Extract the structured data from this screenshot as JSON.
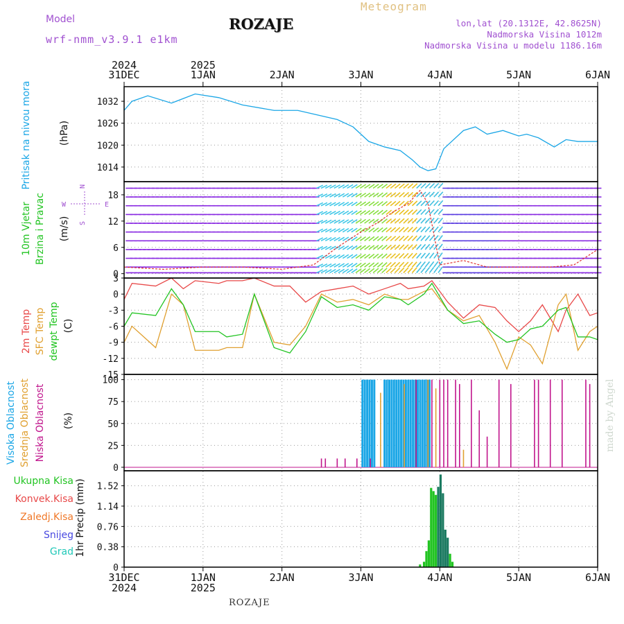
{
  "header": {
    "model_label": "Model",
    "model_name": "wrf-nmm_v3.9.1 e1km",
    "station_title": "ROZAJE",
    "meteogram_label": "Meteogram",
    "coords": "lon,lat (20.1312E, 42.8625N)",
    "elevation": "Nadmorska Visina 1012m",
    "elevation_model": "Nadmorska Visina u modelu 1186.16m"
  },
  "footer": {
    "station": "ROZAJE",
    "watermark": "made by Angel"
  },
  "colors": {
    "pressure": "#1aa6e6",
    "temp2m": "#e84848",
    "sfc_temp": "#e0a030",
    "dewpt": "#22c422",
    "cloud_high": "#1aa6e6",
    "cloud_mid": "#e0a030",
    "cloud_low": "#c0148c",
    "precip_total": "#22c422",
    "precip_conv": "#e84848",
    "precip_frz": "#f07828",
    "precip_snow": "#4848e0",
    "precip_grad": "#20c8b8",
    "wind_label": "#a050d0",
    "grid": "#999999"
  },
  "time_axis": {
    "top_years": [
      "2024",
      "2025"
    ],
    "bottom_years": [
      "2024",
      "2025"
    ],
    "ticks": [
      "31DEC",
      "1JAN",
      "2JAN",
      "3JAN",
      "4JAN",
      "5JAN",
      "6JAN"
    ]
  },
  "panels": {
    "pressure": {
      "ylabel_main": "Pritisak na nivou mora",
      "unit": "(hPa)",
      "ticks": [
        "1032",
        "1026",
        "1020",
        "1014"
      ]
    },
    "wind": {
      "label1": "10m Vjetar",
      "label2": "Brzina i Pravac",
      "unit": "(m/s)",
      "ticks": [
        "18",
        "12",
        "6",
        "0"
      ],
      "compass_n": "N",
      "compass_s": "S",
      "compass_w": "W",
      "compass_e": "E"
    },
    "temp": {
      "label_2m": "2m Temp",
      "label_sfc": "SFC Temp",
      "label_dew": "dewpt Temp",
      "unit": "(C)",
      "ticks": [
        "3",
        "0",
        "-3",
        "-6",
        "-9",
        "-12",
        "-15"
      ]
    },
    "cloud": {
      "label_high": "Visoka Oblacnost",
      "label_mid": "Srednja Oblacnost",
      "label_low": "Niska Oblacnost",
      "unit": "(%)",
      "ticks": [
        "100",
        "75",
        "50",
        "25",
        "0"
      ]
    },
    "precip": {
      "label_total": "Ukupna Kisa",
      "label_conv": "Konvek.Kisa",
      "label_frz": "Zaledj.Kisa",
      "label_snow": "Snijeg",
      "label_grad": "Grad",
      "ylabel": "1hr Precip (mm)",
      "ticks": [
        "1.52",
        "1.14",
        "0.76",
        "0.38",
        "0"
      ]
    }
  },
  "chart_data": [
    {
      "type": "line",
      "name": "pressure",
      "x": [
        0,
        0.1,
        0.3,
        0.6,
        0.9,
        1.2,
        1.5,
        1.9,
        2.2,
        2.4,
        2.7,
        2.9,
        3.1,
        3.3,
        3.5,
        3.65,
        3.75,
        3.85,
        3.95,
        4.05,
        4.3,
        4.45,
        4.6,
        4.8,
        5.0,
        5.1,
        5.25,
        5.45,
        5.6,
        5.75,
        5.9,
        6.0
      ],
      "values": [
        1029.5,
        1032.0,
        1033.5,
        1031.5,
        1034.0,
        1033.0,
        1031.0,
        1029.5,
        1029.5,
        1028.5,
        1027.0,
        1025.0,
        1021.0,
        1019.5,
        1018.5,
        1016.0,
        1014.0,
        1013.0,
        1013.5,
        1019.0,
        1024.0,
        1025.0,
        1023.0,
        1024.0,
        1022.5,
        1023.0,
        1022.0,
        1019.5,
        1021.5,
        1021.0,
        1021.0,
        1021.0
      ],
      "ylim": [
        1010,
        1036
      ]
    },
    {
      "type": "line",
      "name": "wind_speed",
      "x": [
        0,
        0.5,
        1.0,
        1.5,
        2.0,
        2.4,
        2.7,
        3.0,
        3.2,
        3.4,
        3.6,
        3.75,
        3.85,
        4.0,
        4.3,
        4.6,
        5.0,
        5.4,
        5.7,
        6.0
      ],
      "values": [
        1.5,
        1.0,
        1.5,
        1.5,
        1.0,
        2.0,
        6.0,
        9.5,
        11.5,
        14.0,
        16.0,
        19.0,
        16.0,
        2.0,
        3.0,
        1.5,
        1.5,
        1.5,
        2.0,
        5.5
      ],
      "ylim": [
        -1,
        21
      ]
    },
    {
      "type": "line",
      "name": "temperature",
      "x": [
        0,
        0.1,
        0.4,
        0.6,
        0.75,
        0.9,
        1.2,
        1.3,
        1.5,
        1.65,
        1.9,
        2.1,
        2.3,
        2.5,
        2.7,
        2.9,
        3.1,
        3.3,
        3.5,
        3.6,
        3.8,
        3.9,
        4.1,
        4.3,
        4.5,
        4.7,
        4.85,
        5.0,
        5.15,
        5.3,
        5.5,
        5.6,
        5.75,
        5.9,
        6.0
      ],
      "series": [
        {
          "name": "2m Temp",
          "values": [
            -1.0,
            2.0,
            1.5,
            3.0,
            1.0,
            2.5,
            2.0,
            2.5,
            2.5,
            3.0,
            1.5,
            1.5,
            -1.5,
            0.5,
            1.0,
            1.5,
            0.0,
            1.0,
            2.0,
            1.0,
            1.5,
            2.5,
            -1.5,
            -4.5,
            -2.0,
            -2.5,
            -5.0,
            -7.0,
            -5.0,
            -2.0,
            -7.0,
            -3.0,
            0.0,
            -4.0,
            -3.5
          ]
        },
        {
          "name": "SFC Temp",
          "values": [
            -9.0,
            -6.0,
            -10.0,
            0.0,
            -2.0,
            -10.5,
            -10.5,
            -10.0,
            -10.0,
            0.0,
            -9.0,
            -9.5,
            -6.0,
            0.0,
            -1.5,
            -1.0,
            -2.0,
            0.0,
            -1.0,
            -1.0,
            0.5,
            1.0,
            -3.0,
            -5.0,
            -4.0,
            -9.0,
            -14.0,
            -8.0,
            -9.5,
            -13.0,
            -2.0,
            0.0,
            -10.5,
            -7.0,
            -6.0
          ]
        },
        {
          "name": "dewpt Temp",
          "values": [
            -6.0,
            -3.5,
            -4.0,
            1.0,
            -2.0,
            -7.0,
            -7.0,
            -8.0,
            -7.5,
            0.0,
            -10.0,
            -11.0,
            -7.0,
            -0.5,
            -2.5,
            -2.0,
            -3.0,
            -0.5,
            -1.0,
            -2.0,
            0.0,
            2.0,
            -3.0,
            -5.5,
            -5.0,
            -7.5,
            -9.0,
            -8.5,
            -6.5,
            -6.0,
            -3.0,
            -2.5,
            -8.0,
            -8.0,
            -8.5
          ]
        }
      ],
      "ylim": [
        -15,
        3
      ]
    },
    {
      "type": "bar",
      "name": "cloud_cover",
      "x_high": [
        3.02,
        3.05,
        3.08,
        3.11,
        3.14,
        3.17,
        3.3,
        3.33,
        3.36,
        3.39,
        3.42,
        3.45,
        3.48,
        3.51,
        3.54,
        3.57,
        3.6,
        3.63,
        3.66,
        3.69,
        3.72,
        3.75,
        3.78,
        3.81,
        3.84,
        3.87
      ],
      "high": [
        100,
        100,
        100,
        100,
        100,
        100,
        100,
        100,
        100,
        100,
        100,
        100,
        100,
        100,
        100,
        100,
        100,
        100,
        100,
        100,
        100,
        100,
        100,
        100,
        100,
        100
      ],
      "x_mid": [
        3.25,
        3.55,
        3.7,
        3.85,
        3.95,
        4.1,
        4.3
      ],
      "mid": [
        85,
        95,
        100,
        100,
        90,
        10,
        20
      ],
      "x_low": [
        2.5,
        2.55,
        2.7,
        2.8,
        2.95,
        3.12,
        3.7,
        3.9,
        4.0,
        4.05,
        4.1,
        4.2,
        4.25,
        4.4,
        4.5,
        4.6,
        4.75,
        4.9,
        5.2,
        5.25,
        5.4,
        5.55,
        5.85,
        5.9
      ],
      "low": [
        10,
        10,
        10,
        10,
        10,
        10,
        100,
        100,
        100,
        100,
        100,
        100,
        95,
        100,
        65,
        35,
        100,
        95,
        100,
        100,
        100,
        100,
        100,
        95
      ],
      "ylim": [
        0,
        100
      ]
    },
    {
      "type": "bar",
      "name": "precip_1hr",
      "x": [
        3.75,
        3.8,
        3.83,
        3.86,
        3.89,
        3.92,
        3.95,
        3.98,
        4.01,
        4.04,
        4.07,
        4.1,
        4.13,
        4.16
      ],
      "total": [
        0.05,
        0.1,
        0.3,
        0.5,
        1.48,
        1.42,
        1.35,
        1.5,
        1.73,
        1.38,
        0.7,
        0.55,
        0.25,
        0.1
      ],
      "ylim": [
        0,
        1.8
      ]
    }
  ]
}
